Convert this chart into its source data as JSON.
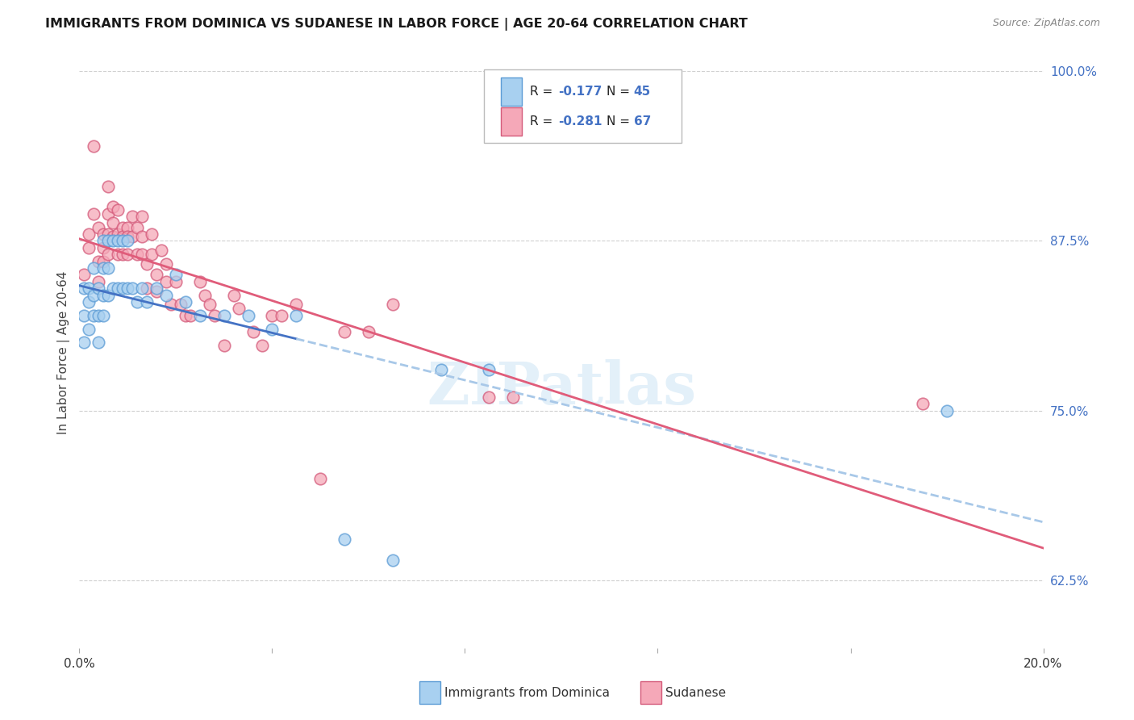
{
  "title": "IMMIGRANTS FROM DOMINICA VS SUDANESE IN LABOR FORCE | AGE 20-64 CORRELATION CHART",
  "source": "Source: ZipAtlas.com",
  "ylabel": "In Labor Force | Age 20-64",
  "xlim": [
    0.0,
    0.2
  ],
  "ylim": [
    0.575,
    1.01
  ],
  "yticks_right": [
    0.625,
    0.75,
    0.875,
    1.0
  ],
  "yticklabels_right": [
    "62.5%",
    "75.0%",
    "87.5%",
    "100.0%"
  ],
  "dominica_color": "#a8d0f0",
  "dominica_edge": "#5b9bd5",
  "sudanese_color": "#f5a8b8",
  "sudanese_edge": "#d45a7a",
  "regression_blue_solid": "#4472c4",
  "regression_pink_solid": "#e05c7a",
  "regression_blue_dashed": "#a8c8e8",
  "watermark": "ZIPatlas",
  "dominica_x": [
    0.001,
    0.001,
    0.001,
    0.002,
    0.002,
    0.002,
    0.003,
    0.003,
    0.003,
    0.004,
    0.004,
    0.004,
    0.005,
    0.005,
    0.005,
    0.005,
    0.006,
    0.006,
    0.006,
    0.007,
    0.007,
    0.008,
    0.008,
    0.009,
    0.009,
    0.01,
    0.01,
    0.011,
    0.012,
    0.013,
    0.014,
    0.016,
    0.018,
    0.02,
    0.022,
    0.025,
    0.03,
    0.035,
    0.04,
    0.045,
    0.055,
    0.065,
    0.075,
    0.085,
    0.18
  ],
  "dominica_y": [
    0.82,
    0.8,
    0.84,
    0.83,
    0.84,
    0.81,
    0.855,
    0.835,
    0.82,
    0.84,
    0.82,
    0.8,
    0.875,
    0.855,
    0.835,
    0.82,
    0.875,
    0.855,
    0.835,
    0.875,
    0.84,
    0.875,
    0.84,
    0.875,
    0.84,
    0.875,
    0.84,
    0.84,
    0.83,
    0.84,
    0.83,
    0.84,
    0.835,
    0.85,
    0.83,
    0.82,
    0.82,
    0.82,
    0.81,
    0.82,
    0.655,
    0.64,
    0.78,
    0.78,
    0.75
  ],
  "sudanese_x": [
    0.001,
    0.002,
    0.002,
    0.003,
    0.003,
    0.004,
    0.004,
    0.004,
    0.005,
    0.005,
    0.005,
    0.006,
    0.006,
    0.006,
    0.006,
    0.007,
    0.007,
    0.007,
    0.008,
    0.008,
    0.008,
    0.009,
    0.009,
    0.009,
    0.01,
    0.01,
    0.01,
    0.011,
    0.011,
    0.012,
    0.012,
    0.013,
    0.013,
    0.013,
    0.014,
    0.014,
    0.015,
    0.015,
    0.016,
    0.016,
    0.017,
    0.018,
    0.018,
    0.019,
    0.02,
    0.021,
    0.022,
    0.023,
    0.025,
    0.026,
    0.027,
    0.028,
    0.03,
    0.032,
    0.033,
    0.036,
    0.038,
    0.04,
    0.042,
    0.045,
    0.05,
    0.055,
    0.06,
    0.065,
    0.085,
    0.09,
    0.175
  ],
  "sudanese_y": [
    0.85,
    0.88,
    0.87,
    0.945,
    0.895,
    0.885,
    0.86,
    0.845,
    0.88,
    0.87,
    0.86,
    0.915,
    0.895,
    0.88,
    0.865,
    0.9,
    0.888,
    0.878,
    0.898,
    0.88,
    0.865,
    0.885,
    0.878,
    0.865,
    0.885,
    0.878,
    0.865,
    0.893,
    0.878,
    0.885,
    0.865,
    0.893,
    0.878,
    0.865,
    0.858,
    0.84,
    0.88,
    0.865,
    0.85,
    0.838,
    0.868,
    0.858,
    0.845,
    0.828,
    0.845,
    0.828,
    0.82,
    0.82,
    0.845,
    0.835,
    0.828,
    0.82,
    0.798,
    0.835,
    0.825,
    0.808,
    0.798,
    0.82,
    0.82,
    0.828,
    0.7,
    0.808,
    0.808,
    0.828,
    0.76,
    0.76,
    0.755
  ],
  "reg_blue_intercept": 0.84,
  "reg_blue_slope": -0.48,
  "reg_pink_intercept": 0.858,
  "reg_pink_slope": -0.55
}
